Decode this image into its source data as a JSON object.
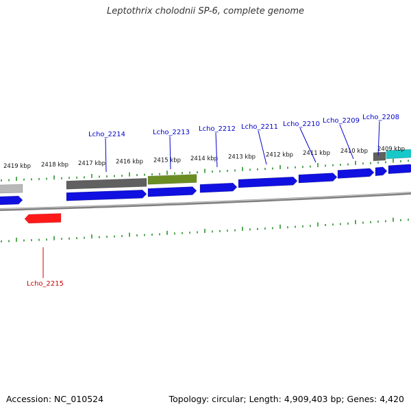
{
  "title": "Leptothrix cholodnii SP-6, complete genome",
  "footer": {
    "accession": "Accession: NC_010524",
    "summary": "Topology: circular; Length: 4,909,403 bp; Genes: 4,420"
  },
  "colors": {
    "forward_cds": "#1010e0",
    "reverse_cds": "#ff1a1a",
    "gray_feature": "#606060",
    "light_gray_feature": "#b8b8b8",
    "olive_feature": "#6b8e23",
    "cyan_feature": "#18c8c8",
    "ticks": "#1a8a1a",
    "backbone": "#808080",
    "forward_label": "#0000cc",
    "reverse_label": "#cc0000"
  },
  "kbp_labels": [
    "2419 kbp",
    "2418 kbp",
    "2417 kbp",
    "2416 kbp",
    "2415 kbp",
    "2414 kbp",
    "2413 kbp",
    "2412 kbp",
    "2411 kbp",
    "2410 kbp",
    "2409 kbp"
  ],
  "genes": [
    {
      "label": "Lcho_2214",
      "strand": "forward"
    },
    {
      "label": "Lcho_2213",
      "strand": "forward"
    },
    {
      "label": "Lcho_2212",
      "strand": "forward"
    },
    {
      "label": "Lcho_2211",
      "strand": "forward"
    },
    {
      "label": "Lcho_2210",
      "strand": "forward"
    },
    {
      "label": "Lcho_2209",
      "strand": "forward"
    },
    {
      "label": "Lcho_2208",
      "strand": "forward"
    },
    {
      "label": "Lcho_2215",
      "strand": "reverse"
    }
  ]
}
